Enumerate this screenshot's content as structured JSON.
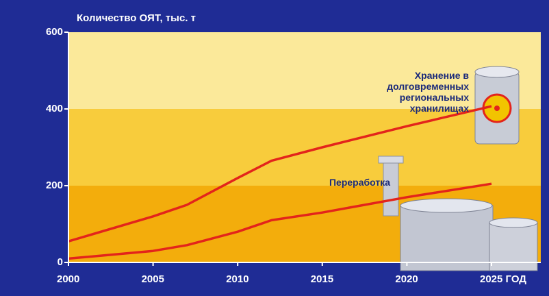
{
  "chart_data": {
    "type": "line",
    "title": "Количество ОЯТ, тыс. т",
    "x": [
      2000,
      2005,
      2007,
      2010,
      2012,
      2015,
      2020,
      2025
    ],
    "series": [
      {
        "name": "Хранение в долговременных региональных хранилищах",
        "color": "#e3241b",
        "values": [
          55,
          120,
          150,
          220,
          265,
          300,
          355,
          407
        ]
      },
      {
        "name": "Переработка",
        "color": "#e3241b",
        "values": [
          10,
          30,
          45,
          80,
          110,
          130,
          170,
          205
        ]
      }
    ],
    "xlim": [
      2000,
      2025
    ],
    "xticks": [
      2000,
      2005,
      2010,
      2015,
      2020,
      {
        "value": 2025,
        "label": "2025 ГОД"
      }
    ],
    "ylim": [
      0,
      600
    ],
    "yticks": [
      0,
      200,
      400,
      600
    ]
  }
}
